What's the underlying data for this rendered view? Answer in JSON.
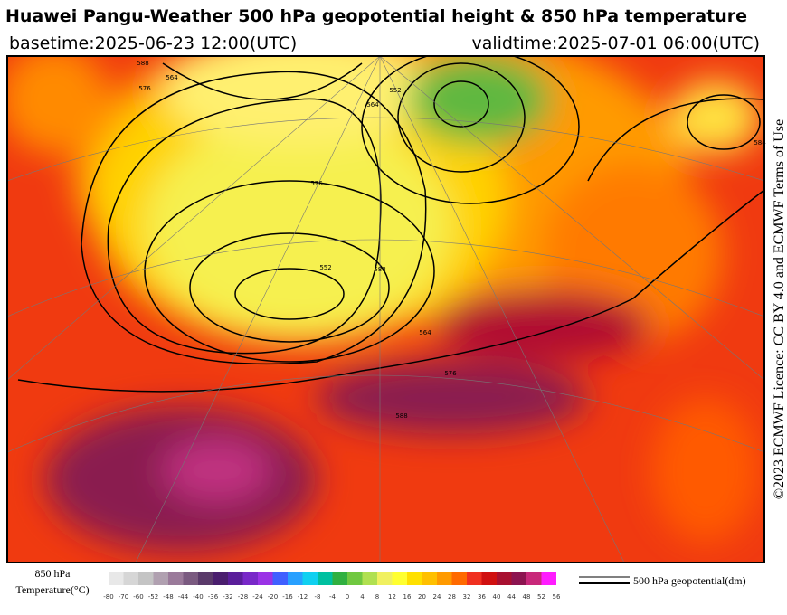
{
  "header": {
    "title": "Huawei Pangu-Weather 500 hPa geopotential height & 850 hPa temperature",
    "basetime": "basetime:2025-06-23 12:00(UTC)",
    "validtime": "validtime:2025-07-01 06:00(UTC)"
  },
  "credit": "©2023 ECMWF Licence: CC BY 4.0 and ECMWF Terms of Use",
  "legend": {
    "temperature_label": [
      "850 hPa",
      "Temperature(°C)"
    ],
    "contour_label": "500 hPa geopotential(dm)"
  },
  "colorbar": {
    "ticks": [
      -80,
      -70,
      -60,
      -52,
      -48,
      -44,
      -40,
      -36,
      -32,
      -28,
      -24,
      -20,
      -16,
      -12,
      -8,
      -4,
      0,
      4,
      8,
      12,
      16,
      20,
      24,
      28,
      32,
      36,
      40,
      44,
      48,
      52,
      56
    ],
    "colors": [
      "#e8e8e8",
      "#d6d6d6",
      "#c4c4c4",
      "#b0a0b0",
      "#9a7a9a",
      "#7a5a80",
      "#5a3a6a",
      "#4a1e6e",
      "#5a1e9a",
      "#7828c8",
      "#9a32e6",
      "#4060ff",
      "#28a0ff",
      "#10d0f0",
      "#00c0a0",
      "#30b040",
      "#70c840",
      "#b0e050",
      "#f0f060",
      "#ffff30",
      "#ffe000",
      "#ffc000",
      "#ff9a00",
      "#ff6a00",
      "#f03020",
      "#d01010",
      "#a81030",
      "#8c1450",
      "#c8287a",
      "#ff1cff"
    ]
  },
  "contour_labels": [
    "588",
    "576",
    "564",
    "552",
    "588",
    "576",
    "564",
    "552",
    "576",
    "564",
    "588",
    "584"
  ]
}
